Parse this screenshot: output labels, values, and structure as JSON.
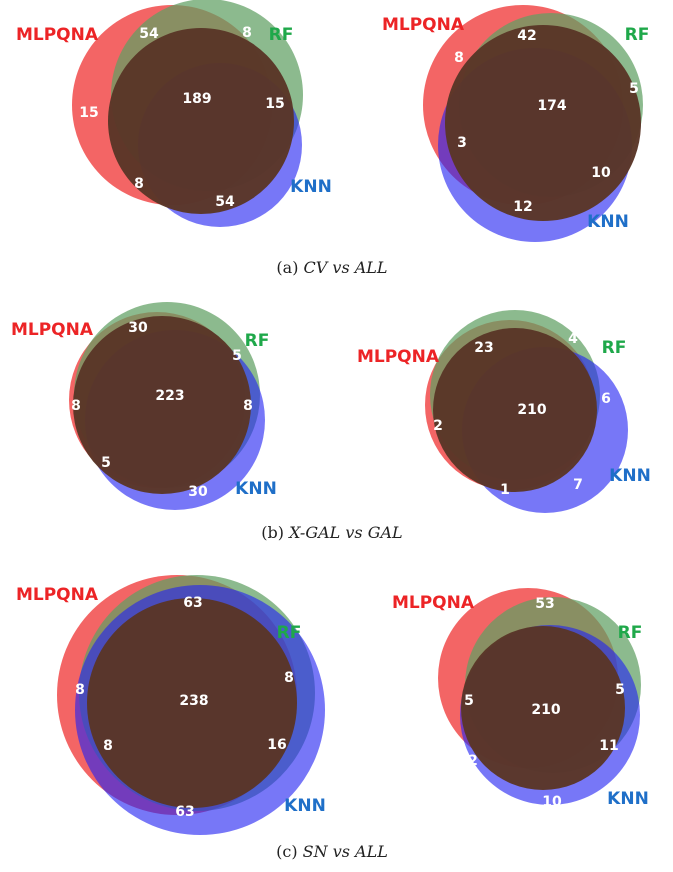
{
  "colors": {
    "mlpqna": "#ec2426",
    "rf": "#1fa84a",
    "knn": "#1f6fc8",
    "circle_mlpqna": "#f14a4a",
    "circle_rf": "#5f9f62",
    "circle_knn": "#2323f2",
    "core": "#5a3627"
  },
  "labels": {
    "mlpqna": "MLPQNA",
    "rf": "RF",
    "knn": "KNN"
  },
  "panels": [
    {
      "caption": {
        "tag": "(a)",
        "title": "CV vs ALL"
      },
      "diagrams": [
        {
          "counts": {
            "core": "189",
            "mlp_rf": "54",
            "rf": "8",
            "mlp": "15",
            "rf_knn": "15",
            "mlp_knn": "8",
            "knn": "54"
          }
        },
        {
          "counts": {
            "core": "174",
            "mlp_rf": "42",
            "rf": "5",
            "mlp": "8",
            "rf_knn": "10",
            "mlp_knn": "3",
            "knn": "12"
          }
        }
      ]
    },
    {
      "caption": {
        "tag": "(b)",
        "title": "X-GAL vs GAL"
      },
      "diagrams": [
        {
          "counts": {
            "core": "223",
            "mlp_rf": "30",
            "rf": "5",
            "mlp": "8",
            "rf_knn": "8",
            "mlp_knn": "5",
            "knn": "30"
          }
        },
        {
          "counts": {
            "core": "210",
            "mlp_rf": "23",
            "rf": "4",
            "mlp": "2",
            "rf_knn": "6",
            "mlp_knn": "1",
            "knn": "7"
          }
        }
      ]
    },
    {
      "caption": {
        "tag": "(c)",
        "title": "SN vs ALL"
      },
      "diagrams": [
        {
          "counts": {
            "core": "238",
            "mlp_rf": "63",
            "rf": "8",
            "mlp": "8",
            "rf_knn": "16",
            "mlp_knn": "8",
            "knn": "63"
          }
        },
        {
          "counts": {
            "core": "210",
            "mlp_rf": "53",
            "rf": "5",
            "mlp": "5",
            "rf_knn": "11",
            "mlp_knn": "2",
            "knn": "10"
          }
        }
      ]
    }
  ]
}
